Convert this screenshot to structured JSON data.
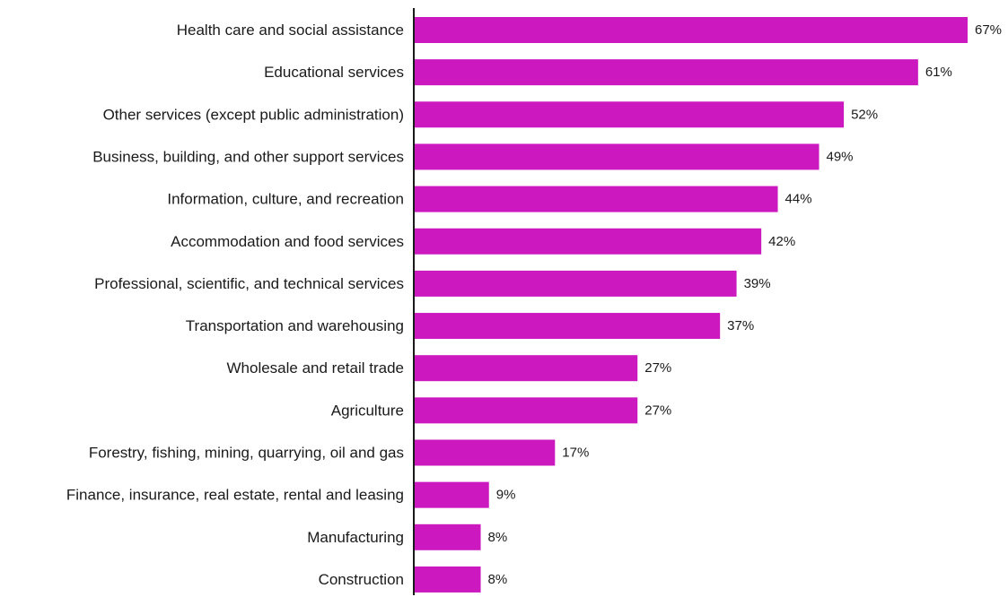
{
  "chart_data": {
    "type": "bar",
    "orientation": "horizontal",
    "title": "",
    "xlabel": "",
    "ylabel": "",
    "categories": [
      "Health care and social assistance",
      "Educational services",
      "Other services (except public administration)",
      "Business, building, and other support services",
      "Information, culture, and recreation",
      "Accommodation and food services",
      "Professional, scientific, and technical services",
      "Transportation and warehousing",
      "Wholesale and retail trade",
      "Agriculture",
      "Forestry, fishing, mining, quarrying, oil and gas",
      "Finance, insurance, real estate, rental and leasing",
      "Manufacturing",
      "Construction"
    ],
    "values": [
      67,
      61,
      52,
      49,
      44,
      42,
      39,
      37,
      27,
      27,
      17,
      9,
      8,
      8
    ],
    "value_labels": [
      "67%",
      "61%",
      "52%",
      "49%",
      "44%",
      "42%",
      "39%",
      "37%",
      "27%",
      "27%",
      "17%",
      "9%",
      "8%",
      "8%"
    ],
    "xlim": [
      0,
      67
    ],
    "grid": false,
    "legend": "none",
    "colors": {
      "bar": "#cc19bf",
      "axis": "#1a1a1a",
      "text": "#1a1a1a"
    }
  }
}
